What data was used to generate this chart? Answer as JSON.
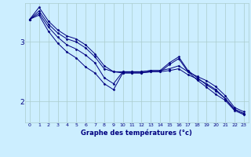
{
  "background_color": "#cceeff",
  "grid_color": "#aacccc",
  "line_color": "#000080",
  "marker": "D",
  "marker_size": 1.5,
  "linewidth": 0.7,
  "xlabel": "Graphe des températures (°c)",
  "xlabel_color": "#000080",
  "xlabel_fontsize": 6.0,
  "xtick_fontsize": 4.5,
  "ytick_fontsize": 6.5,
  "ytick_color": "#000080",
  "xtick_color": "#000080",
  "xlim": [
    -0.5,
    23.5
  ],
  "ylim": [
    1.65,
    3.65
  ],
  "yticks": [
    2,
    3
  ],
  "xticks": [
    0,
    1,
    2,
    3,
    4,
    5,
    6,
    7,
    8,
    9,
    10,
    11,
    12,
    13,
    14,
    15,
    16,
    17,
    18,
    19,
    20,
    21,
    22,
    23
  ],
  "series": [
    [
      3.38,
      3.58,
      3.35,
      3.2,
      3.1,
      3.05,
      2.95,
      2.8,
      2.6,
      2.5,
      2.5,
      2.5,
      2.5,
      2.52,
      2.52,
      2.55,
      2.6,
      2.5,
      2.42,
      2.35,
      2.25,
      2.1,
      1.9,
      1.83
    ],
    [
      3.38,
      3.52,
      3.3,
      3.15,
      3.05,
      3.0,
      2.9,
      2.75,
      2.55,
      2.5,
      2.48,
      2.48,
      2.48,
      2.5,
      2.5,
      2.52,
      2.55,
      2.45,
      2.38,
      2.3,
      2.2,
      2.05,
      1.87,
      1.8
    ],
    [
      3.38,
      3.48,
      3.25,
      3.08,
      2.95,
      2.88,
      2.78,
      2.65,
      2.4,
      2.3,
      2.5,
      2.5,
      2.5,
      2.52,
      2.52,
      2.65,
      2.75,
      2.52,
      2.4,
      2.28,
      2.18,
      2.05,
      1.87,
      1.8
    ],
    [
      3.38,
      3.45,
      3.18,
      2.98,
      2.83,
      2.73,
      2.58,
      2.48,
      2.3,
      2.2,
      2.48,
      2.48,
      2.48,
      2.5,
      2.5,
      2.62,
      2.72,
      2.5,
      2.36,
      2.24,
      2.12,
      2.02,
      1.85,
      1.78
    ]
  ]
}
